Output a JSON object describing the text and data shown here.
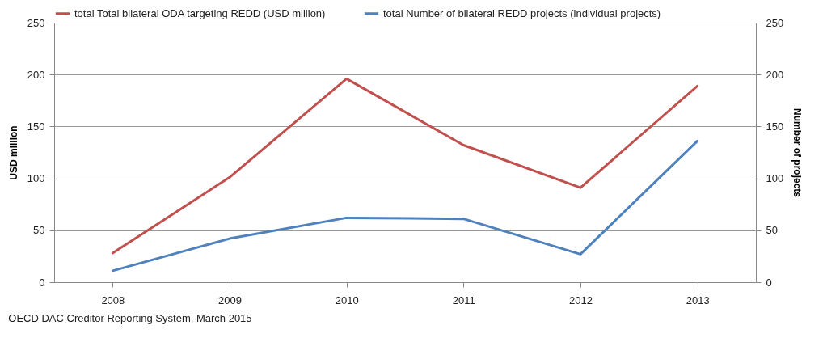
{
  "chart_data": {
    "type": "line",
    "categories": [
      "2008",
      "2009",
      "2010",
      "2011",
      "2012",
      "2013"
    ],
    "series": [
      {
        "name": "total Total bilateral ODA targeting REDD (USD million)",
        "color": "#c0504d",
        "values": [
          28,
          101,
          196,
          132,
          91,
          189
        ]
      },
      {
        "name": "total Number of bilateral REDD projects (individual projects)",
        "color": "#4f81bd",
        "values": [
          11,
          42,
          62,
          61,
          27,
          136
        ],
        "axis": "y2"
      }
    ],
    "ylabel": "USD million",
    "y2label": "Number of projects",
    "ylim": [
      0,
      250
    ],
    "yticks": [
      0,
      50,
      100,
      150,
      200,
      250
    ],
    "y2lim": [
      0,
      250
    ],
    "y2ticks": [
      0,
      50,
      100,
      150,
      200,
      250
    ],
    "grid": "y",
    "legend": "top",
    "marker": "none",
    "line_style": "solid",
    "annotations": [
      "OECD  DAC Creditor Reporting System, March 2015"
    ]
  }
}
